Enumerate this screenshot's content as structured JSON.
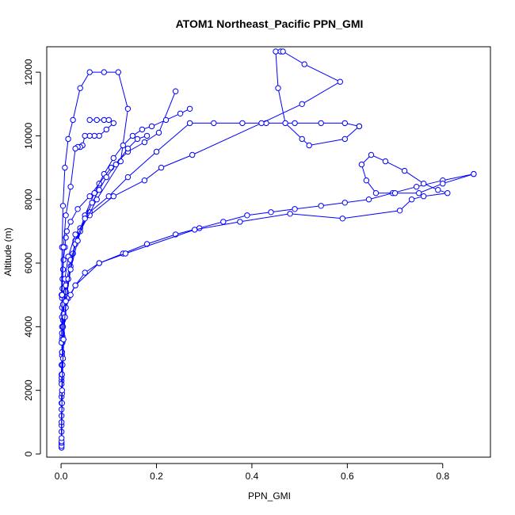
{
  "chart_data": {
    "type": "line",
    "title": "ATOM1 Northeast_Pacific PPN_GMI",
    "xlabel": "PPN_GMI",
    "ylabel": "Altitude (m)",
    "xlim": [
      -0.03,
      0.9
    ],
    "ylim": [
      -100,
      12800
    ],
    "x_ticks": [
      0.0,
      0.2,
      0.4,
      0.6,
      0.8
    ],
    "x_tick_labels": [
      "0.0",
      "0.2",
      "0.4",
      "0.6",
      "0.8"
    ],
    "y_ticks": [
      0,
      2000,
      4000,
      6000,
      8000,
      10000,
      12000
    ],
    "y_tick_labels": [
      "0",
      "2000",
      "4000",
      "6000",
      "8000",
      "10000",
      "12000"
    ],
    "grid": false,
    "legend": "none",
    "marker": "open-circle",
    "color": "#0000ff",
    "series": [
      {
        "x": [
          0.001,
          0.001,
          0.001,
          0.001,
          0.001,
          0.001,
          0.002,
          0.002,
          0.002,
          0.002,
          0.002,
          0.002,
          0.003,
          0.003,
          0.004,
          0.005,
          0.008,
          0.01,
          0.012,
          0.02,
          0.035,
          0.06,
          0.08,
          0.105,
          0.14,
          0.175,
          0.205,
          0.24
        ],
        "y": [
          200,
          700,
          1200,
          1800,
          2300,
          2800,
          3200,
          3600,
          4000,
          4300,
          4600,
          4900,
          5200,
          5500,
          5800,
          6100,
          6500,
          6800,
          7000,
          7300,
          7700,
          8100,
          8500,
          9000,
          9500,
          9800,
          10100,
          11400
        ]
      },
      {
        "x": [
          0.001,
          0.001,
          0.001,
          0.001,
          0.002,
          0.003,
          0.004,
          0.006,
          0.01,
          0.015,
          0.02,
          0.025,
          0.03,
          0.04,
          0.06,
          0.1,
          0.14,
          0.2,
          0.27,
          0.32,
          0.38,
          0.43,
          0.49,
          0.545,
          0.595,
          0.625
        ],
        "y": [
          300,
          900,
          1600,
          2400,
          3100,
          3700,
          4200,
          4700,
          5100,
          5500,
          5900,
          6300,
          6700,
          7100,
          7600,
          8100,
          8700,
          9500,
          10400,
          10400,
          10400,
          10400,
          10400,
          10400,
          10400,
          10300
        ]
      },
      {
        "x": [
          0.625,
          0.595,
          0.52,
          0.505,
          0.47,
          0.455,
          0.45,
          0.46,
          0.465,
          0.51,
          0.585,
          0.505,
          0.42,
          0.275,
          0.21,
          0.175,
          0.11,
          0.06,
          0.03,
          0.015,
          0.008,
          0.004,
          0.002,
          0.001
        ],
        "y": [
          10300,
          9900,
          9700,
          9900,
          10400,
          11500,
          12650,
          12650,
          12650,
          12250,
          11700,
          11000,
          10400,
          9400,
          9000,
          8600,
          8100,
          7500,
          6900,
          6200,
          5500,
          4700,
          3800,
          2500
        ]
      },
      {
        "x": [
          0.001,
          0.001,
          0.002,
          0.003,
          0.005,
          0.008,
          0.015,
          0.03,
          0.05,
          0.08,
          0.13,
          0.18,
          0.24,
          0.29,
          0.34,
          0.39,
          0.44,
          0.49,
          0.545,
          0.595,
          0.645,
          0.695,
          0.745,
          0.8,
          0.865
        ],
        "y": [
          250,
          1000,
          1900,
          2800,
          3600,
          4300,
          4900,
          5300,
          5700,
          6000,
          6300,
          6600,
          6900,
          7100,
          7300,
          7500,
          7600,
          7700,
          7800,
          7900,
          8000,
          8200,
          8400,
          8600,
          8800
        ]
      },
      {
        "x": [
          0.865,
          0.8,
          0.75,
          0.7,
          0.66,
          0.64,
          0.63,
          0.65,
          0.68,
          0.72,
          0.76,
          0.79,
          0.81,
          0.76,
          0.735,
          0.71,
          0.59,
          0.48,
          0.375,
          0.28,
          0.135,
          0.08,
          0.03,
          0.02,
          0.01,
          0.004,
          0.002,
          0.001
        ],
        "y": [
          8800,
          8500,
          8200,
          8200,
          8200,
          8600,
          9100,
          9400,
          9200,
          8900,
          8500,
          8300,
          8200,
          8100,
          8000,
          7650,
          7400,
          7550,
          7300,
          7050,
          6300,
          6000,
          5300,
          5000,
          4600,
          4000,
          3200,
          2200
        ]
      },
      {
        "x": [
          0.001,
          0.001,
          0.002,
          0.003,
          0.005,
          0.01,
          0.02,
          0.04,
          0.075,
          0.125,
          0.14,
          0.12,
          0.09,
          0.06,
          0.04,
          0.025,
          0.015,
          0.008,
          0.004,
          0.002,
          0.001
        ],
        "y": [
          350,
          1400,
          2500,
          3500,
          4400,
          5300,
          6100,
          7000,
          8000,
          9200,
          10850,
          12000,
          12000,
          12000,
          11500,
          10500,
          9900,
          9000,
          7800,
          6500,
          5000
        ]
      },
      {
        "x": [
          0.001,
          0.002,
          0.004,
          0.008,
          0.015,
          0.03,
          0.05,
          0.07,
          0.09,
          0.11,
          0.13,
          0.15,
          0.17,
          0.19,
          0.22,
          0.25,
          0.27
        ],
        "y": [
          400,
          1600,
          3000,
          4300,
          5500,
          6600,
          7500,
          8200,
          8800,
          9300,
          9700,
          10000,
          10200,
          10300,
          10500,
          10700,
          10850
        ]
      },
      {
        "x": [
          0.06,
          0.075,
          0.09,
          0.1,
          0.11,
          0.095,
          0.08,
          0.07,
          0.06,
          0.05,
          0.045,
          0.04,
          0.035,
          0.03,
          0.02,
          0.01,
          0.005,
          0.002,
          0.001
        ],
        "y": [
          10500,
          10500,
          10500,
          10500,
          10400,
          10200,
          10000,
          10000,
          10000,
          10000,
          9700,
          9650,
          9650,
          9600,
          8400,
          7500,
          6500,
          5000,
          3500
        ]
      },
      {
        "x": [
          0.001,
          0.002,
          0.005,
          0.01,
          0.02,
          0.035,
          0.05,
          0.065,
          0.08,
          0.095,
          0.115,
          0.14,
          0.16,
          0.18
        ],
        "y": [
          500,
          2000,
          3600,
          4800,
          5800,
          6700,
          7400,
          7900,
          8300,
          8700,
          9100,
          9600,
          9900,
          10000
        ]
      }
    ]
  }
}
